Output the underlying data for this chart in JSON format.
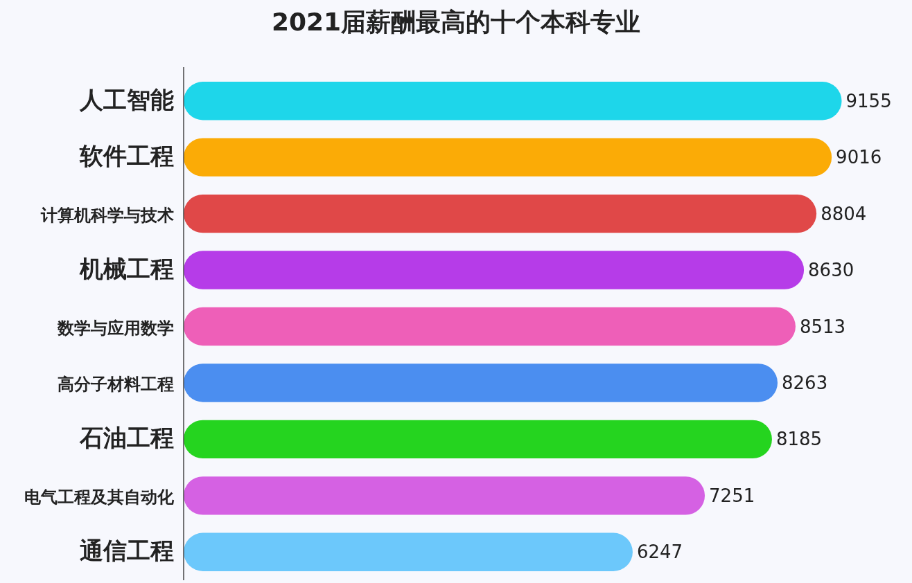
{
  "chart_data": {
    "type": "bar",
    "orientation": "horizontal",
    "title": "2021届薪酬最高的十个本科专业",
    "categories": [
      "人工智能",
      "软件工程",
      "计算机科学与技术",
      "机械工程",
      "数学与应用数学",
      "高分子材料工程",
      "石油工程",
      "电气工程及其自动化",
      "通信工程"
    ],
    "values": [
      9155,
      9016,
      8804,
      8630,
      8513,
      8263,
      8185,
      7251,
      6247
    ],
    "colors": [
      "#1ed6ea",
      "#fbab06",
      "#e04848",
      "#b63ce8",
      "#ee5fb8",
      "#4b8ef0",
      "#25d41f",
      "#d561e3",
      "#6cc8fb"
    ],
    "data_labels": true
  }
}
